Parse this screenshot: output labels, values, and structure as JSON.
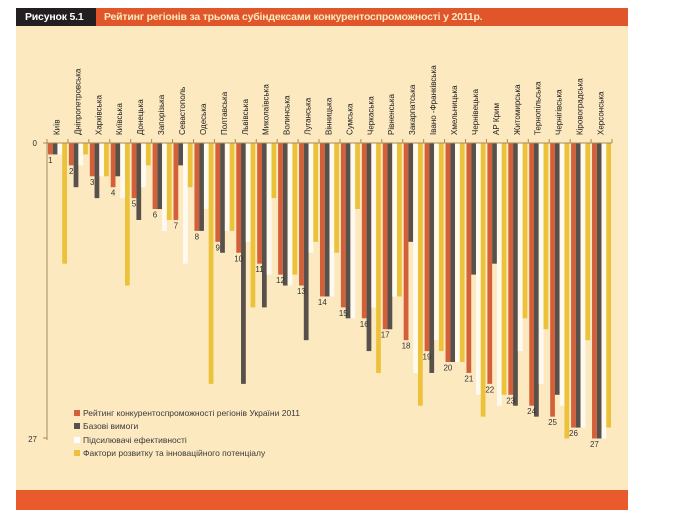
{
  "figure": {
    "label": "Рисунок 5.1",
    "title": "Рейтинг регіонів за трьома субіндексами конкурентоспроможності у 2011р."
  },
  "colors": {
    "series": [
      "#d4603a",
      "#58504b",
      "#fffaf0",
      "#ecc23a"
    ],
    "background": "#fde9c0",
    "title_accent": "#e0562a",
    "label_bg": "#231f20"
  },
  "chart_data": {
    "type": "bar",
    "title": "Рейтинг регіонів за трьома субіндексами конкурентоспроможності у 2011р.",
    "xlabel": "",
    "ylabel": "",
    "ylim": [
      0,
      27
    ],
    "y_inverted": true,
    "y_ticks": [
      "0",
      "27"
    ],
    "grid": false,
    "legend_position": "bottom-left",
    "categories": [
      "Київ",
      "Дніпропетровська",
      "Харківська",
      "Київська",
      "Донецька",
      "Запорізька",
      "Севастополь",
      "Одеська",
      "Полтавська",
      "Львівська",
      "Миколаївська",
      "Волинська",
      "Луганська",
      "Вінницька",
      "Сумська",
      "Черкаська",
      "Рівненська",
      "Закарпатська",
      "Івано -Франківська",
      "Хмельницька",
      "Чернівецька",
      "АР Крим",
      "Житомирська",
      "Тернопільська",
      "Чернігівська",
      "Кіровоградська",
      "Херсонська"
    ],
    "series": [
      {
        "name": "Рейтинг конкурентоспроможності регіонів України 2011",
        "values": [
          1,
          2,
          3,
          4,
          5,
          6,
          7,
          8,
          9,
          10,
          11,
          12,
          13,
          14,
          15,
          16,
          17,
          18,
          19,
          20,
          21,
          22,
          23,
          24,
          25,
          26,
          27
        ]
      },
      {
        "name": "Базові вимоги",
        "values": [
          1,
          4,
          5,
          3,
          7,
          6,
          2,
          8,
          10,
          22,
          15,
          13,
          18,
          14,
          16,
          19,
          17,
          9,
          21,
          20,
          12,
          11,
          24,
          25,
          23,
          26,
          27
        ]
      },
      {
        "name": "Підсилювачі ефективності",
        "values": [
          1,
          2,
          3,
          5,
          4,
          8,
          11,
          6,
          8,
          9,
          12,
          13,
          10,
          14,
          16,
          15,
          14,
          21,
          18,
          20,
          23,
          24,
          19,
          22,
          24,
          26,
          27
        ]
      },
      {
        "name": "Фактори розвитку та інноваційного потенціалу",
        "values": [
          11,
          1,
          3,
          13,
          2,
          7,
          4,
          22,
          8,
          15,
          5,
          12,
          9,
          10,
          6,
          21,
          14,
          24,
          19,
          20,
          25,
          23,
          16,
          17,
          27,
          18,
          26
        ]
      }
    ],
    "data_labels": [
      "1",
      "2",
      "3",
      "4",
      "5",
      "6",
      "7",
      "8",
      "9",
      "10",
      "11",
      "12",
      "13",
      "14",
      "15",
      "16",
      "17",
      "18",
      "19",
      "20",
      "21",
      "22",
      "23",
      "24",
      "25",
      "26",
      "27"
    ]
  },
  "legend": [
    "Рейтинг конкурентоспроможності регіонів України 2011",
    "Базові вимоги",
    "Підсилювачі ефективності",
    "Фактори розвитку та інноваційного потенціалу"
  ]
}
